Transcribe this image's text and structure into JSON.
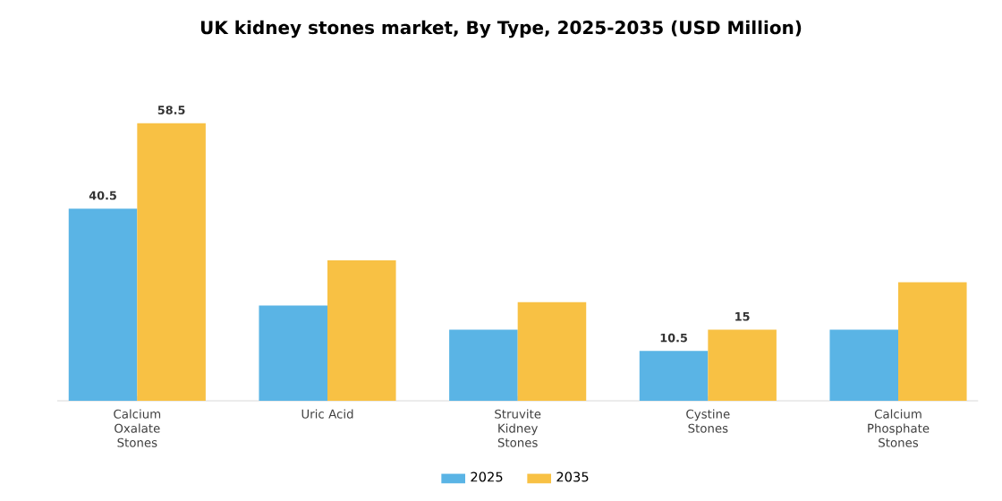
{
  "chart_data": {
    "type": "bar",
    "title": "UK kidney stones market, By Type, 2025-2035 (USD Million)",
    "categories": [
      "Calcium Oxalate Stones",
      "Uric Acid",
      "Struvite Kidney Stones",
      "Cystine Stones",
      "Calcium Phosphate Stones"
    ],
    "series": [
      {
        "name": "2025",
        "color": "#5ab4e5",
        "values": [
          40.5,
          20.1,
          15,
          10.5,
          15
        ],
        "value_labels": [
          "40.5",
          null,
          null,
          "10.5",
          null
        ]
      },
      {
        "name": "2035",
        "color": "#f8c144",
        "values": [
          58.5,
          29.6,
          20.8,
          15,
          25
        ],
        "value_labels": [
          "58.5",
          null,
          null,
          "15",
          null
        ]
      }
    ],
    "legend": "bottom",
    "grid": false,
    "tick_labels": "x"
  }
}
